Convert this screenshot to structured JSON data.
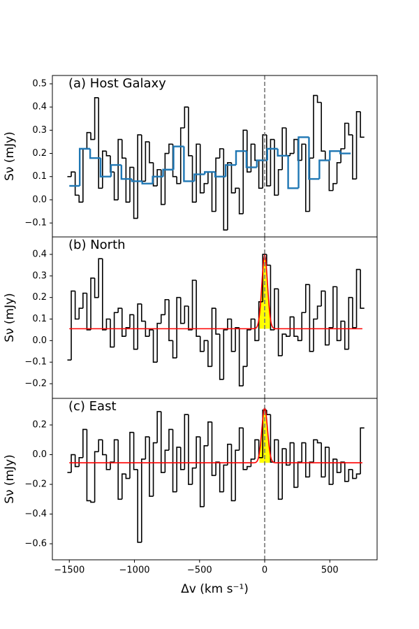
{
  "chart_data": [
    {
      "type": "step",
      "title": "(a) Host Galaxy",
      "ylabel": "Sν (mJy)",
      "x": [
        -1500,
        -1470,
        -1440,
        -1410,
        -1380,
        -1350,
        -1320,
        -1290,
        -1260,
        -1230,
        -1200,
        -1170,
        -1140,
        -1110,
        -1080,
        -1050,
        -1020,
        -990,
        -960,
        -930,
        -900,
        -870,
        -840,
        -810,
        -780,
        -750,
        -720,
        -690,
        -660,
        -630,
        -600,
        -570,
        -540,
        -510,
        -480,
        -450,
        -420,
        -390,
        -360,
        -330,
        -300,
        -270,
        -240,
        -210,
        -180,
        -150,
        -120,
        -90,
        -60,
        -30,
        0,
        30,
        60,
        90,
        120,
        150,
        180,
        210,
        240,
        270,
        300,
        330,
        360,
        390,
        420,
        450,
        480,
        510,
        540,
        570,
        600,
        630,
        660,
        690,
        720,
        750
      ],
      "values": [
        0.1,
        0.12,
        0.02,
        -0.01,
        0.22,
        0.29,
        0.26,
        0.44,
        0.05,
        0.21,
        0.19,
        0.12,
        0.0,
        0.26,
        0.18,
        -0.01,
        0.14,
        -0.08,
        0.28,
        0.08,
        0.25,
        0.16,
        0.06,
        0.13,
        -0.02,
        0.2,
        0.24,
        0.1,
        0.07,
        0.31,
        0.4,
        0.19,
        -0.01,
        0.24,
        0.03,
        0.07,
        0.12,
        -0.05,
        0.18,
        0.22,
        -0.13,
        0.16,
        0.03,
        0.05,
        -0.06,
        0.3,
        0.12,
        0.24,
        0.17,
        0.05,
        0.28,
        0.06,
        0.26,
        0.02,
        0.13,
        0.31,
        0.19,
        0.2,
        0.26,
        0.17,
        0.24,
        -0.05,
        0.18,
        0.45,
        0.42,
        0.21,
        0.17,
        0.04,
        0.07,
        0.16,
        0.22,
        0.33,
        0.28,
        0.09,
        0.38,
        0.27
      ],
      "color": "#000000",
      "binned": {
        "x": [
          -1460,
          -1380,
          -1300,
          -1220,
          -1140,
          -1060,
          -980,
          -900,
          -820,
          -740,
          -660,
          -580,
          -500,
          -420,
          -340,
          -260,
          -180,
          -100,
          -20,
          60,
          140,
          220,
          300,
          380,
          460,
          540,
          620
        ],
        "values": [
          0.06,
          0.22,
          0.18,
          0.1,
          0.15,
          0.09,
          0.08,
          0.07,
          0.1,
          0.13,
          0.23,
          0.08,
          0.11,
          0.12,
          0.1,
          0.15,
          0.21,
          0.14,
          0.17,
          0.22,
          0.19,
          0.05,
          0.27,
          0.09,
          0.17,
          0.21,
          0.2
        ],
        "color": "#1f77b4"
      },
      "vline": 0,
      "xlim": [
        -1630,
        863
      ],
      "ylim": [
        -0.16,
        0.536
      ],
      "yticks": [
        {
          "value": -0.1,
          "label": "−0.1"
        },
        {
          "value": 0,
          "label": "0.0"
        },
        0.1,
        0.2,
        0.3,
        0.4,
        0.5
      ]
    },
    {
      "type": "step",
      "title": "(b) North",
      "ylabel": "Sν (mJy)",
      "x": [
        -1500,
        -1470,
        -1440,
        -1410,
        -1380,
        -1350,
        -1320,
        -1290,
        -1260,
        -1230,
        -1200,
        -1170,
        -1140,
        -1110,
        -1080,
        -1050,
        -1020,
        -990,
        -960,
        -930,
        -900,
        -870,
        -840,
        -810,
        -780,
        -750,
        -720,
        -690,
        -660,
        -630,
        -600,
        -570,
        -540,
        -510,
        -480,
        -450,
        -420,
        -390,
        -360,
        -330,
        -300,
        -270,
        -240,
        -210,
        -180,
        -150,
        -120,
        -90,
        -60,
        -30,
        0,
        30,
        60,
        90,
        120,
        150,
        180,
        210,
        240,
        270,
        300,
        330,
        360,
        390,
        420,
        450,
        480,
        510,
        540,
        570,
        600,
        630,
        660,
        690,
        720,
        750
      ],
      "values": [
        -0.09,
        0.23,
        0.1,
        0.15,
        0.22,
        0.05,
        0.29,
        0.2,
        0.38,
        0.05,
        0.1,
        -0.03,
        0.13,
        0.15,
        0.02,
        0.06,
        0.12,
        -0.04,
        0.17,
        0.09,
        0.02,
        0.05,
        -0.1,
        0.08,
        0.12,
        0.19,
        0.0,
        -0.08,
        0.2,
        0.08,
        0.16,
        0.05,
        0.28,
        0.02,
        -0.05,
        0.0,
        -0.12,
        0.15,
        0.03,
        -0.18,
        0.05,
        0.1,
        -0.05,
        0.06,
        -0.21,
        -0.12,
        0.05,
        0.1,
        0.0,
        0.18,
        0.4,
        0.35,
        0.05,
        0.24,
        -0.07,
        0.03,
        0.02,
        0.11,
        0.02,
        0.0,
        0.13,
        0.26,
        -0.05,
        0.1,
        0.16,
        0.23,
        -0.02,
        0.06,
        0.25,
        0.0,
        0.09,
        -0.04,
        0.2,
        0.06,
        0.33,
        0.15
      ],
      "color": "#000000",
      "fit": {
        "baseline": 0.055,
        "amplitude": 0.34,
        "center": 0,
        "sigma": 22,
        "color": "#ff0000",
        "fill": "#ffff00",
        "line_window": [
          -40,
          40
        ]
      },
      "vline": 0,
      "xlim": [
        -1630,
        863
      ],
      "ylim": [
        -0.268,
        0.481
      ],
      "yticks": [
        {
          "value": -0.2,
          "label": "−0.2"
        },
        {
          "value": -0.1,
          "label": "−0.1"
        },
        {
          "value": 0,
          "label": "0.0"
        },
        0.1,
        0.2,
        0.3,
        0.4
      ]
    },
    {
      "type": "step",
      "title": "(c) East",
      "ylabel": "Sν (mJy)",
      "xlabel": "Δv (km s⁻¹)",
      "x": [
        -1500,
        -1470,
        -1440,
        -1410,
        -1380,
        -1350,
        -1320,
        -1290,
        -1260,
        -1230,
        -1200,
        -1170,
        -1140,
        -1110,
        -1080,
        -1050,
        -1020,
        -990,
        -960,
        -930,
        -900,
        -870,
        -840,
        -810,
        -780,
        -750,
        -720,
        -690,
        -660,
        -630,
        -600,
        -570,
        -540,
        -510,
        -480,
        -450,
        -420,
        -390,
        -360,
        -330,
        -300,
        -270,
        -240,
        -210,
        -180,
        -150,
        -120,
        -90,
        -60,
        -30,
        0,
        30,
        60,
        90,
        120,
        150,
        180,
        210,
        240,
        270,
        300,
        330,
        360,
        390,
        420,
        450,
        480,
        510,
        540,
        570,
        600,
        630,
        660,
        690,
        720,
        750
      ],
      "values": [
        -0.12,
        0.0,
        -0.08,
        -0.02,
        0.17,
        -0.31,
        -0.32,
        0.02,
        0.1,
        0.0,
        -0.1,
        -0.05,
        0.1,
        -0.3,
        -0.13,
        -0.16,
        0.15,
        -0.1,
        -0.59,
        -0.03,
        0.12,
        -0.28,
        0.08,
        0.29,
        -0.12,
        0.03,
        0.17,
        -0.25,
        0.05,
        -0.1,
        0.27,
        -0.2,
        -0.09,
        0.12,
        -0.35,
        0.06,
        0.22,
        -0.14,
        -0.05,
        -0.25,
        -0.07,
        0.07,
        -0.31,
        0.03,
        0.18,
        -0.1,
        -0.08,
        -0.03,
        0.1,
        -0.02,
        0.3,
        0.27,
        -0.05,
        0.1,
        -0.3,
        0.04,
        -0.07,
        0.08,
        -0.22,
        -0.05,
        0.08,
        -0.15,
        -0.05,
        0.1,
        0.08,
        -0.15,
        0.05,
        -0.2,
        -0.03,
        -0.12,
        -0.05,
        -0.18,
        -0.1,
        -0.16,
        -0.13,
        0.18
      ],
      "color": "#000000",
      "fit": {
        "baseline": -0.055,
        "amplitude": 0.37,
        "center": 0,
        "sigma": 22,
        "color": "#ff0000",
        "fill": "#ffff00",
        "line_window": [
          -40,
          40
        ]
      },
      "vline": 0,
      "xlim": [
        -1630,
        863
      ],
      "ylim": [
        -0.708,
        0.379
      ],
      "yticks": [
        {
          "value": -0.6,
          "label": "−0.6"
        },
        {
          "value": -0.4,
          "label": "−0.4"
        },
        {
          "value": -0.2,
          "label": "−0.2"
        },
        {
          "value": 0,
          "label": "0.0"
        },
        0.2
      ],
      "xticks": [
        {
          "value": -1500,
          "label": "−1500"
        },
        {
          "value": -1000,
          "label": "−1000"
        },
        {
          "value": -500,
          "label": "−500"
        },
        0,
        500
      ]
    }
  ]
}
